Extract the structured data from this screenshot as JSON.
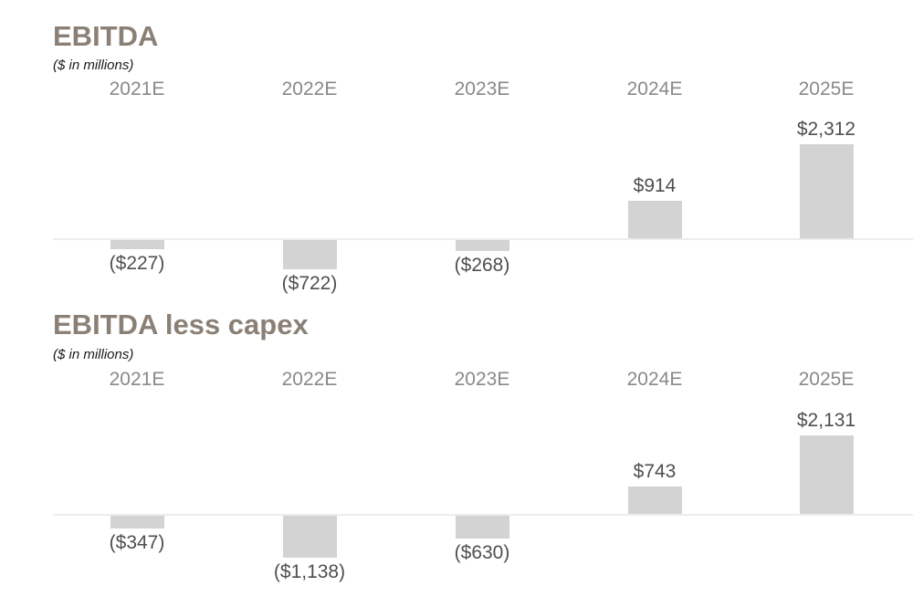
{
  "page": {
    "background": "#ffffff"
  },
  "colors": {
    "page-bg": "#ffffff",
    "title": "#8b8076",
    "subtitle": "#1a1a1a",
    "year-label": "#898989",
    "value-label": "#4f4f4f",
    "bar": "#d3d3d3",
    "axis": "#ededed"
  },
  "chart_data": [
    {
      "type": "bar",
      "title": "EBITDA",
      "subtitle": "($ in millions)",
      "categories": [
        "2021E",
        "2022E",
        "2023E",
        "2024E",
        "2025E"
      ],
      "values": [
        -227,
        -722,
        -268,
        914,
        2312
      ],
      "value_labels": [
        "($227)",
        "($722)",
        "($268)",
        "$914",
        "$2,312"
      ],
      "baseline": 0,
      "grid": false,
      "legend": false,
      "bar_color": "#d3d3d3",
      "label_position": "outside-end"
    },
    {
      "type": "bar",
      "title": "EBITDA less capex",
      "subtitle": "($ in millions)",
      "categories": [
        "2021E",
        "2022E",
        "2023E",
        "2024E",
        "2025E"
      ],
      "values": [
        -347,
        -1138,
        -630,
        743,
        2131
      ],
      "value_labels": [
        "($347)",
        "($1,138)",
        "($630)",
        "$743",
        "$2,131"
      ],
      "baseline": 0,
      "grid": false,
      "legend": false,
      "bar_color": "#d3d3d3",
      "label_position": "outside-end"
    }
  ]
}
